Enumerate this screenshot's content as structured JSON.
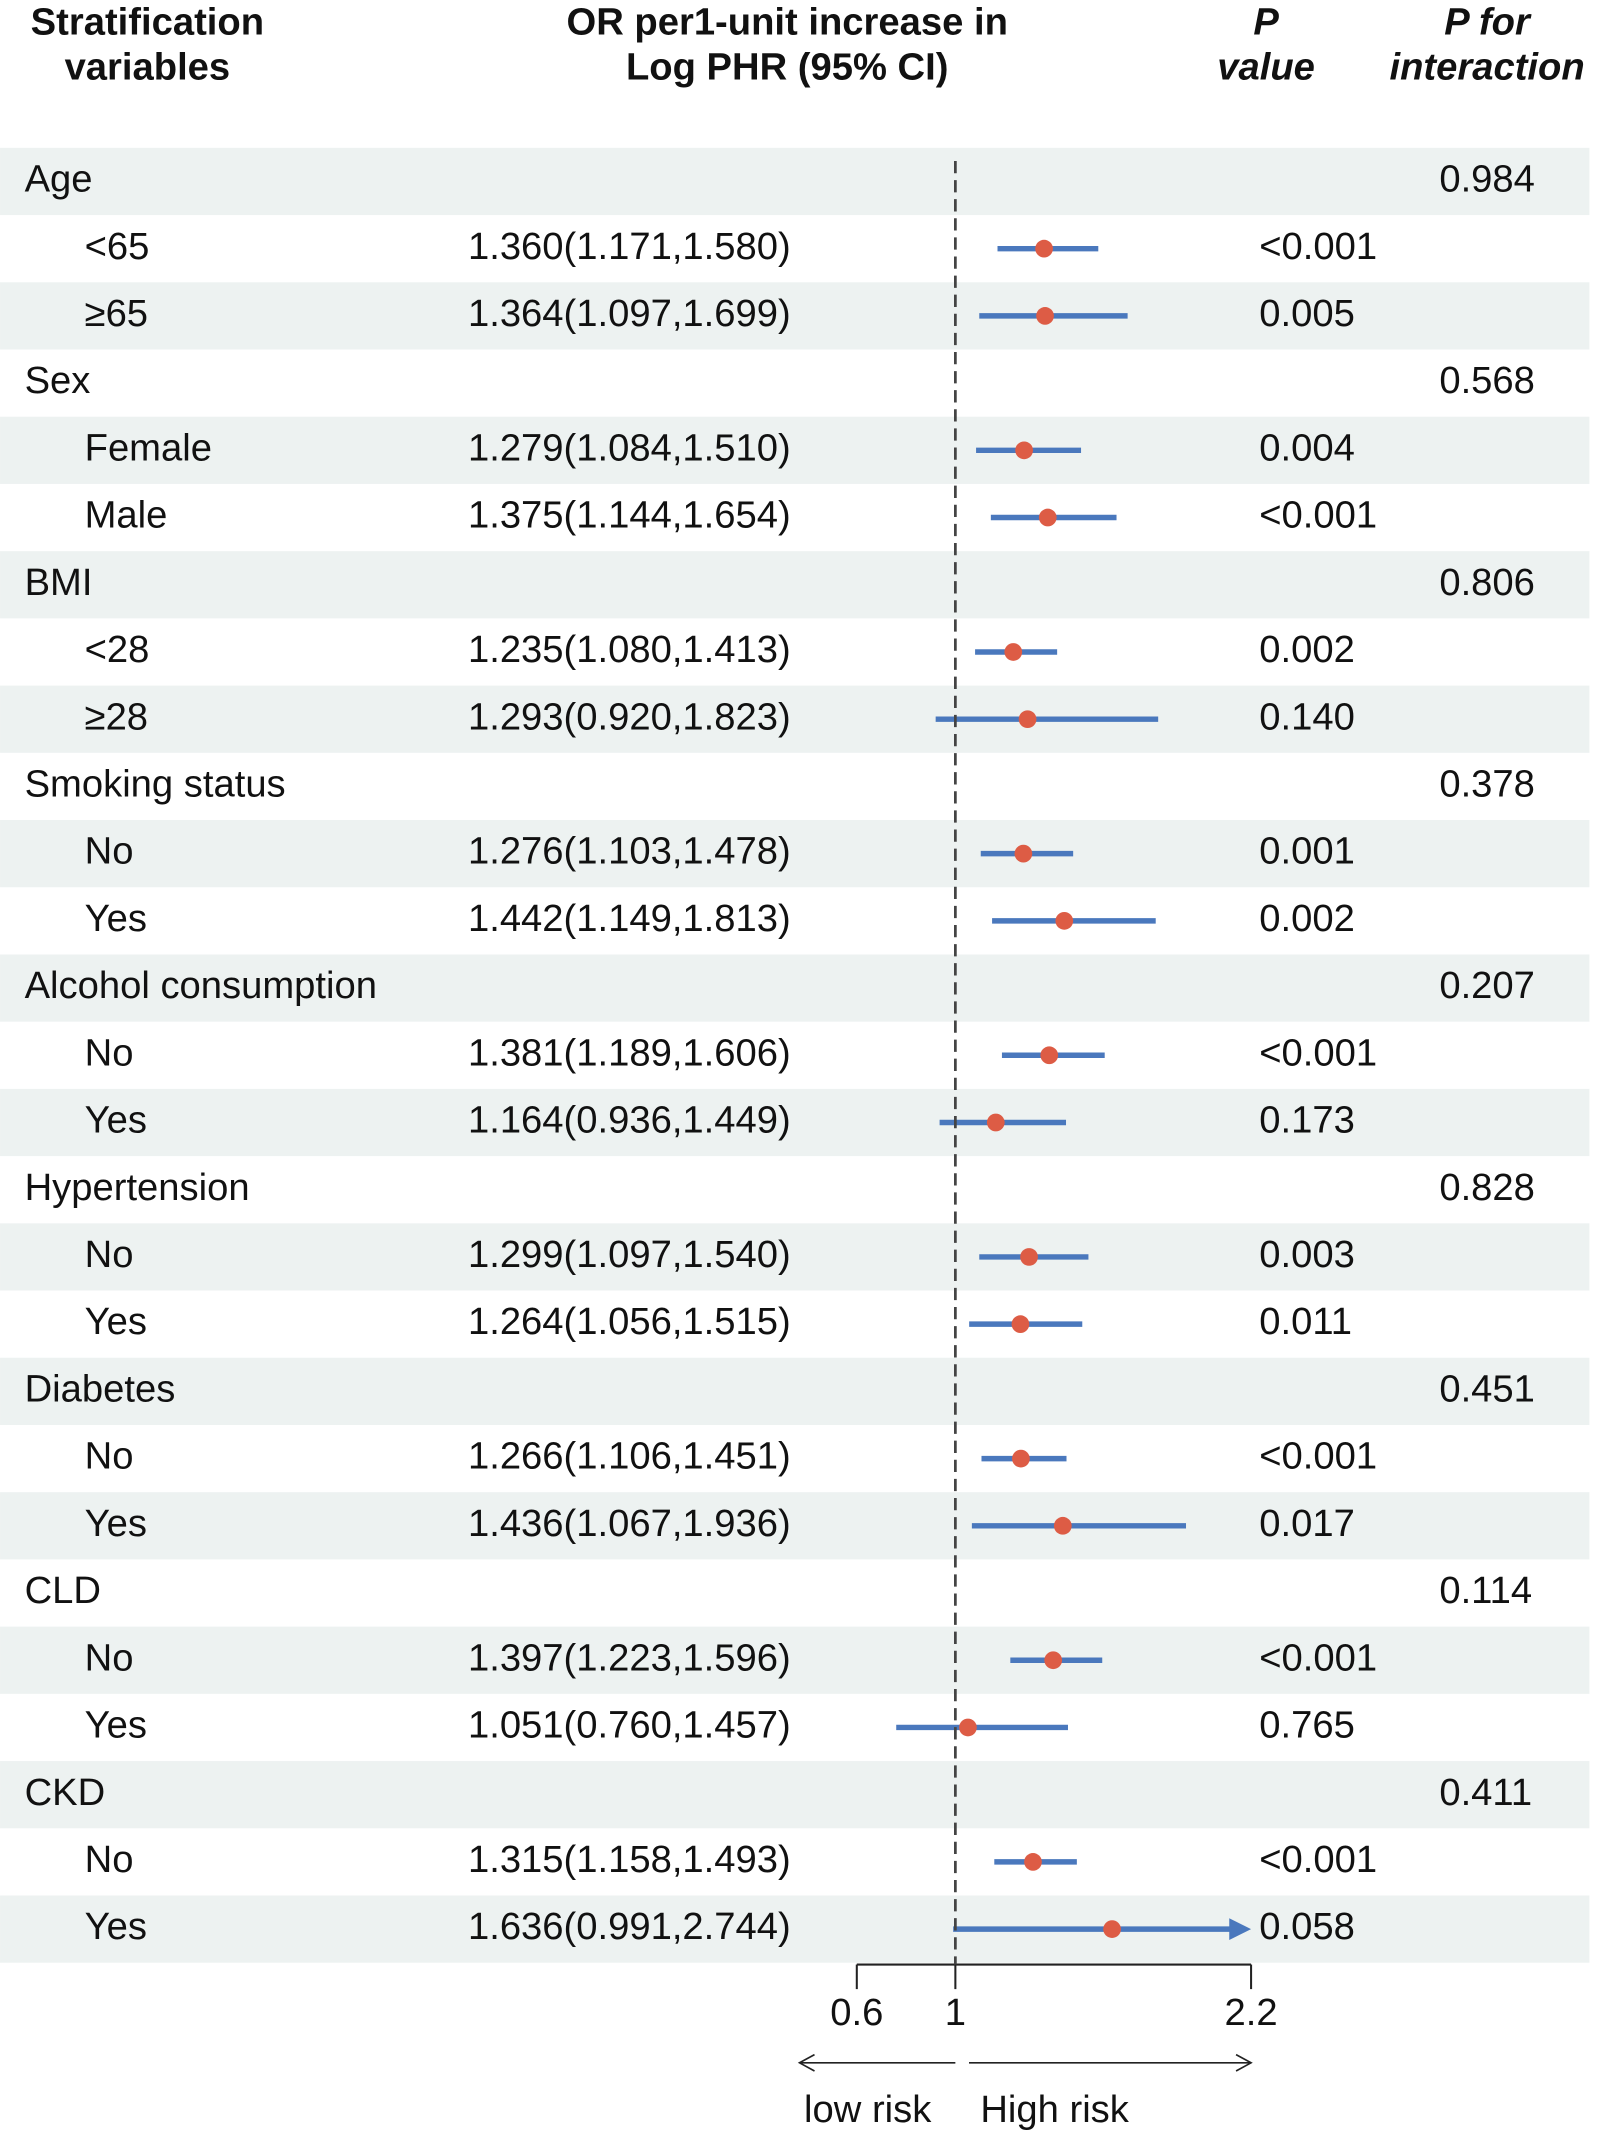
{
  "chart_data": {
    "type": "forest",
    "headers": {
      "variable": [
        "Stratification",
        "variables"
      ],
      "estimate": [
        "OR per1-unit increase in",
        "Log PHR (95% CI)"
      ],
      "p": [
        "P",
        "value"
      ],
      "p_interaction": [
        "P for",
        "interaction"
      ]
    },
    "xlim": [
      0.6,
      2.2
    ],
    "xticks": [
      0.6,
      1,
      2.2
    ],
    "ref": 1,
    "point_color": "#dd5c45",
    "line_color": "#4a78bd",
    "band_color": "#edf2f1",
    "annotations": {
      "left": "low risk",
      "right": "High risk"
    },
    "groups": [
      {
        "name": "Age",
        "p_interaction": 0.984,
        "subgroups": [
          {
            "label": "<65",
            "or": 1.36,
            "lower": 1.171,
            "upper": 1.58,
            "value_label": "1.360(1.171,1.580)",
            "p": "<0.001"
          },
          {
            "label": "≥65",
            "or": 1.364,
            "lower": 1.097,
            "upper": 1.699,
            "value_label": "1.364(1.097,1.699)",
            "p": "0.005"
          }
        ]
      },
      {
        "name": "Sex",
        "p_interaction": 0.568,
        "subgroups": [
          {
            "label": "Female",
            "or": 1.279,
            "lower": 1.084,
            "upper": 1.51,
            "value_label": "1.279(1.084,1.510)",
            "p": "0.004"
          },
          {
            "label": "Male",
            "or": 1.375,
            "lower": 1.144,
            "upper": 1.654,
            "value_label": "1.375(1.144,1.654)",
            "p": "<0.001"
          }
        ]
      },
      {
        "name": "BMI",
        "p_interaction": 0.806,
        "subgroups": [
          {
            "label": "<28",
            "or": 1.235,
            "lower": 1.08,
            "upper": 1.413,
            "value_label": "1.235(1.080,1.413)",
            "p": "0.002"
          },
          {
            "label": "≥28",
            "or": 1.293,
            "lower": 0.92,
            "upper": 1.823,
            "value_label": "1.293(0.920,1.823)",
            "p": "0.140"
          }
        ]
      },
      {
        "name": "Smoking status",
        "p_interaction": 0.378,
        "subgroups": [
          {
            "label": "No",
            "or": 1.276,
            "lower": 1.103,
            "upper": 1.478,
            "value_label": "1.276(1.103,1.478)",
            "p": "0.001"
          },
          {
            "label": "Yes",
            "or": 1.442,
            "lower": 1.149,
            "upper": 1.813,
            "value_label": "1.442(1.149,1.813)",
            "p": "0.002"
          }
        ]
      },
      {
        "name": "Alcohol consumption",
        "p_interaction": 0.207,
        "subgroups": [
          {
            "label": "No",
            "or": 1.381,
            "lower": 1.189,
            "upper": 1.606,
            "value_label": "1.381(1.189,1.606)",
            "p": "<0.001"
          },
          {
            "label": "Yes",
            "or": 1.164,
            "lower": 0.936,
            "upper": 1.449,
            "value_label": "1.164(0.936,1.449)",
            "p": "0.173"
          }
        ]
      },
      {
        "name": "Hypertension",
        "p_interaction": 0.828,
        "subgroups": [
          {
            "label": "No",
            "or": 1.299,
            "lower": 1.097,
            "upper": 1.54,
            "value_label": "1.299(1.097,1.540)",
            "p": "0.003"
          },
          {
            "label": "Yes",
            "or": 1.264,
            "lower": 1.056,
            "upper": 1.515,
            "value_label": "1.264(1.056,1.515)",
            "p": "0.011"
          }
        ]
      },
      {
        "name": "Diabetes",
        "p_interaction": 0.451,
        "subgroups": [
          {
            "label": "No",
            "or": 1.266,
            "lower": 1.106,
            "upper": 1.451,
            "value_label": "1.266(1.106,1.451)",
            "p": "<0.001"
          },
          {
            "label": "Yes",
            "or": 1.436,
            "lower": 1.067,
            "upper": 1.936,
            "value_label": "1.436(1.067,1.936)",
            "p": "0.017"
          }
        ]
      },
      {
        "name": "CLD",
        "p_interaction": 0.114,
        "subgroups": [
          {
            "label": "No",
            "or": 1.397,
            "lower": 1.223,
            "upper": 1.596,
            "value_label": "1.397(1.223,1.596)",
            "p": "<0.001"
          },
          {
            "label": "Yes",
            "or": 1.051,
            "lower": 0.76,
            "upper": 1.457,
            "value_label": "1.051(0.760,1.457)",
            "p": "0.765"
          }
        ]
      },
      {
        "name": "CKD",
        "p_interaction": 0.411,
        "subgroups": [
          {
            "label": "No",
            "or": 1.315,
            "lower": 1.158,
            "upper": 1.493,
            "value_label": "1.315(1.158,1.493)",
            "p": "<0.001"
          },
          {
            "label": "Yes",
            "or": 1.636,
            "lower": 0.991,
            "upper": 2.744,
            "value_label": "1.636(0.991,2.744)",
            "p": "0.058"
          }
        ]
      }
    ]
  }
}
